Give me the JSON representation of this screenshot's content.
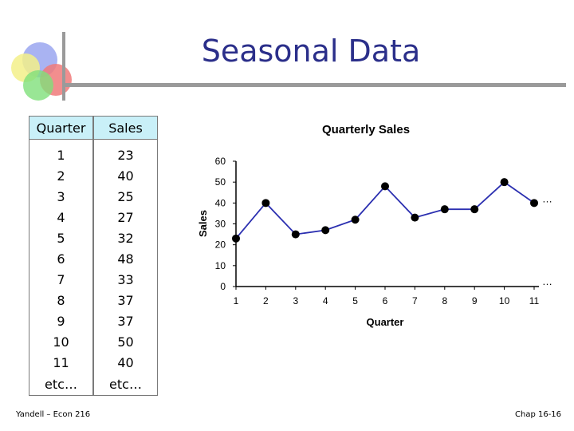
{
  "slide": {
    "title": "Seasonal Data",
    "footer_left": "Yandell – Econ 216",
    "footer_right": "Chap 16-16"
  },
  "table": {
    "headers": [
      "Quarter",
      "Sales"
    ],
    "rows": [
      [
        "1",
        "23"
      ],
      [
        "2",
        "40"
      ],
      [
        "3",
        "25"
      ],
      [
        "4",
        "27"
      ],
      [
        "5",
        "32"
      ],
      [
        "6",
        "48"
      ],
      [
        "7",
        "33"
      ],
      [
        "8",
        "37"
      ],
      [
        "9",
        "37"
      ],
      [
        "10",
        "50"
      ],
      [
        "11",
        "40"
      ],
      [
        "etc…",
        "etc…"
      ]
    ]
  },
  "chart_data": {
    "type": "line",
    "title": "Quarterly Sales",
    "xlabel": "Quarter",
    "ylabel": "Sales",
    "x": [
      1,
      2,
      3,
      4,
      5,
      6,
      7,
      8,
      9,
      10,
      11
    ],
    "values": [
      23,
      40,
      25,
      27,
      32,
      48,
      33,
      37,
      37,
      50,
      40
    ],
    "yticks": [
      0,
      10,
      20,
      30,
      40,
      50,
      60
    ],
    "ylim": [
      0,
      60
    ],
    "continuation_marker": "…",
    "line_color": "#2b2fb0",
    "marker_color": "#000000",
    "grid": false
  }
}
